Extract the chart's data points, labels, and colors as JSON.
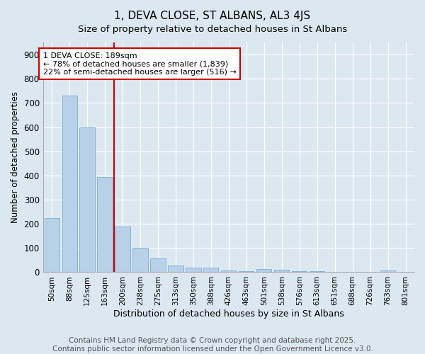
{
  "title": "1, DEVA CLOSE, ST ALBANS, AL3 4JS",
  "subtitle": "Size of property relative to detached houses in St Albans",
  "xlabel": "Distribution of detached houses by size in St Albans",
  "ylabel": "Number of detached properties",
  "categories": [
    "50sqm",
    "88sqm",
    "125sqm",
    "163sqm",
    "200sqm",
    "238sqm",
    "275sqm",
    "313sqm",
    "350sqm",
    "388sqm",
    "426sqm",
    "463sqm",
    "501sqm",
    "538sqm",
    "576sqm",
    "613sqm",
    "651sqm",
    "688sqm",
    "726sqm",
    "763sqm",
    "801sqm"
  ],
  "values": [
    225,
    730,
    600,
    395,
    190,
    100,
    58,
    28,
    20,
    18,
    8,
    5,
    12,
    10,
    5,
    3,
    0,
    0,
    0,
    8,
    0
  ],
  "bar_color": "#b8d0e8",
  "bar_edgecolor": "#7aafd4",
  "vline_x": 3.5,
  "vline_color": "#cc0000",
  "ylim": [
    0,
    950
  ],
  "yticks": [
    0,
    100,
    200,
    300,
    400,
    500,
    600,
    700,
    800,
    900
  ],
  "annotation_text": "1 DEVA CLOSE: 189sqm\n← 78% of detached houses are smaller (1,839)\n22% of semi-detached houses are larger (516) →",
  "annotation_boxcolor": "white",
  "annotation_edgecolor": "#cc0000",
  "footer": "Contains HM Land Registry data © Crown copyright and database right 2025.\nContains public sector information licensed under the Open Government Licence v3.0.",
  "bg_color": "#dce8f0",
  "grid_color": "white",
  "title_fontsize": 11,
  "annotation_fontsize": 8,
  "footer_fontsize": 7.5
}
